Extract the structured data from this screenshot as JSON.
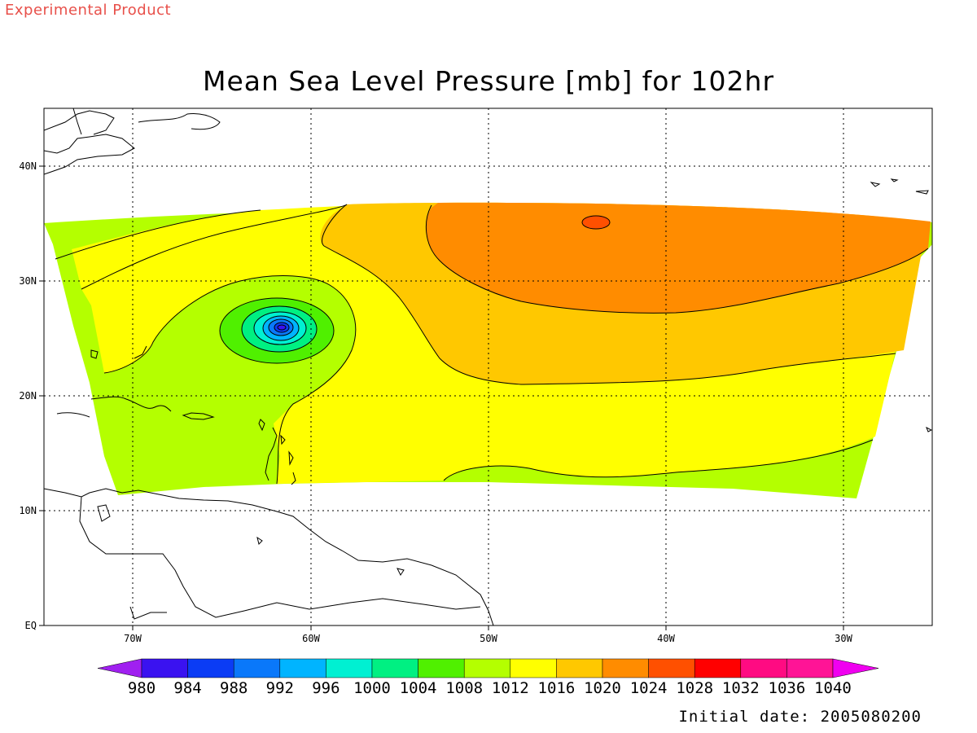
{
  "header": {
    "label": "Experimental Product"
  },
  "title": "Mean Sea Level Pressure [mb] for 102hr",
  "footer": {
    "initial_date": "Initial date: 2005080200"
  },
  "map": {
    "projection": "lat-lon",
    "lon_range": [
      -75,
      -25
    ],
    "lat_range": [
      0,
      45
    ],
    "x_ticks": [
      "70W",
      "60W",
      "50W",
      "40W",
      "30W"
    ],
    "y_ticks": [
      "EQ",
      "10N",
      "20N",
      "30N",
      "40N"
    ],
    "grid": "dotted",
    "features": [
      "coastlines",
      "contour-lines",
      "low-pressure-center"
    ]
  },
  "colorbar": {
    "unit": "mb",
    "levels": [
      "980",
      "984",
      "988",
      "992",
      "996",
      "1000",
      "1004",
      "1008",
      "1012",
      "1016",
      "1020",
      "1024",
      "1028",
      "1032",
      "1036",
      "1040"
    ],
    "colors": [
      "#a020f0",
      "#3a12f0",
      "#0b3cf5",
      "#0a78fa",
      "#00b4ff",
      "#00f0d2",
      "#00f082",
      "#50f000",
      "#b4ff00",
      "#ffff00",
      "#ffc800",
      "#ff8c00",
      "#ff5000",
      "#ff0000",
      "#ff0b82",
      "#ff1496",
      "#f000f0"
    ]
  },
  "fields": {
    "outer_band_color": "#b4ff00",
    "yellow_band_color": "#ffff00",
    "gold_band_color": "#ffc800",
    "orange_band_color": "#ff8c00",
    "high_center_color": "#ff5000"
  }
}
